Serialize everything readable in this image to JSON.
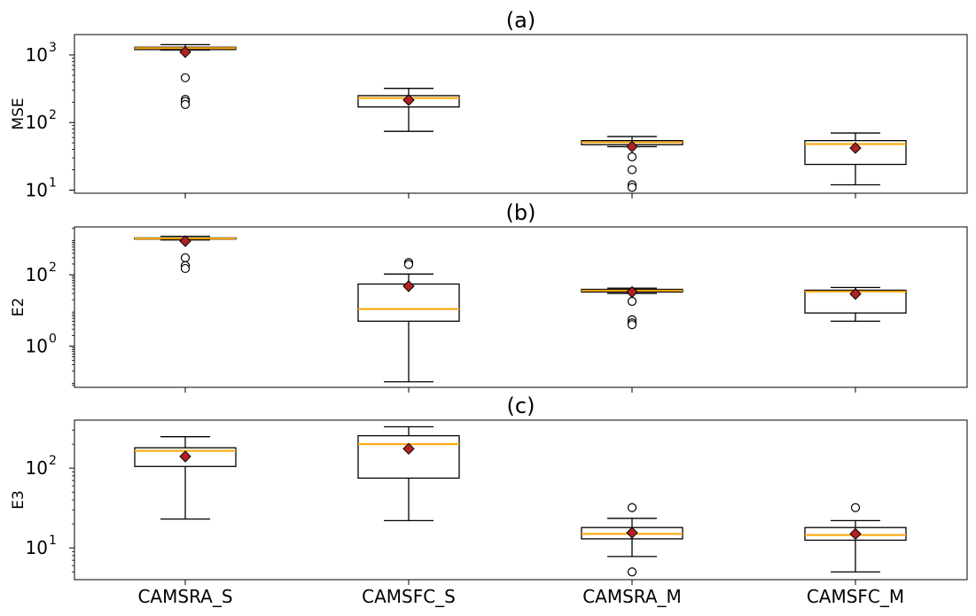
{
  "chart_data": {
    "type": "box",
    "categories": [
      "CAMSRA_S",
      "CAMSFC_S",
      "CAMSRA_M",
      "CAMSFC_M"
    ],
    "colors": {
      "box_edge": "#000000",
      "median": "#ffa500",
      "mean_fill": "#b22222",
      "flier_fill": "#ffffff"
    },
    "panels": [
      {
        "title": "(a)",
        "ylabel": "MSE",
        "yscale": "log",
        "ylim": [
          9,
          2000
        ],
        "ticks": [
          {
            "value": 10,
            "base": "10",
            "exp": "1"
          },
          {
            "value": 100,
            "base": "10",
            "exp": "2"
          },
          {
            "value": 1000,
            "base": "10",
            "exp": "3"
          }
        ],
        "boxes": [
          {
            "whislo": 1180,
            "q1": 1200,
            "med": 1260,
            "q3": 1300,
            "whishi": 1420,
            "mean": 1100,
            "fliers": [
              460,
              220,
              205,
              185
            ]
          },
          {
            "whislo": 74,
            "q1": 170,
            "med": 230,
            "q3": 250,
            "whishi": 320,
            "mean": 215,
            "fliers": []
          },
          {
            "whislo": 44,
            "q1": 47,
            "med": 51,
            "q3": 54,
            "whishi": 62,
            "mean": 44,
            "fliers": [
              31,
              20,
              12,
              11
            ]
          },
          {
            "whislo": 12,
            "q1": 24,
            "med": 48,
            "q3": 54,
            "whishi": 70,
            "mean": 42,
            "fliers": []
          }
        ]
      },
      {
        "title": "(b)",
        "ylabel": "E2",
        "yscale": "log",
        "ylim": [
          0.07,
          2200
        ],
        "ticks": [
          {
            "value": 1,
            "base": "10",
            "exp": "0"
          },
          {
            "value": 100,
            "base": "10",
            "exp": "2"
          }
        ],
        "boxes": [
          {
            "whislo": 950,
            "q1": 1000,
            "med": 1040,
            "q3": 1080,
            "whishi": 1200,
            "mean": 880,
            "fliers": [
              300,
              180,
              150
            ]
          },
          {
            "whislo": 0.1,
            "q1": 5,
            "med": 11,
            "q3": 55,
            "whishi": 105,
            "mean": 48,
            "fliers": [
              220,
              195
            ]
          },
          {
            "whislo": 30,
            "q1": 33,
            "med": 36,
            "q3": 39,
            "whishi": 42,
            "mean": 33,
            "fliers": [
              18,
              5.5,
              4.5,
              4
            ]
          },
          {
            "whislo": 5,
            "q1": 8.5,
            "med": 34,
            "q3": 37,
            "whishi": 44,
            "mean": 29,
            "fliers": []
          }
        ]
      },
      {
        "title": "(c)",
        "ylabel": "E3",
        "yscale": "log",
        "ylim": [
          4,
          400
        ],
        "ticks": [
          {
            "value": 10,
            "base": "10",
            "exp": "1"
          },
          {
            "value": 100,
            "base": "10",
            "exp": "2"
          }
        ],
        "boxes": [
          {
            "whislo": 23,
            "q1": 105,
            "med": 165,
            "q3": 180,
            "whishi": 248,
            "mean": 140,
            "fliers": []
          },
          {
            "whislo": 22,
            "q1": 75,
            "med": 200,
            "q3": 255,
            "whishi": 330,
            "mean": 175,
            "fliers": []
          },
          {
            "whislo": 7.8,
            "q1": 13,
            "med": 15,
            "q3": 18,
            "whishi": 23.5,
            "mean": 15.5,
            "fliers": [
              32,
              5
            ]
          },
          {
            "whislo": 5,
            "q1": 12.5,
            "med": 14.5,
            "q3": 18,
            "whishi": 22,
            "mean": 15,
            "fliers": [
              32
            ]
          }
        ]
      }
    ]
  }
}
